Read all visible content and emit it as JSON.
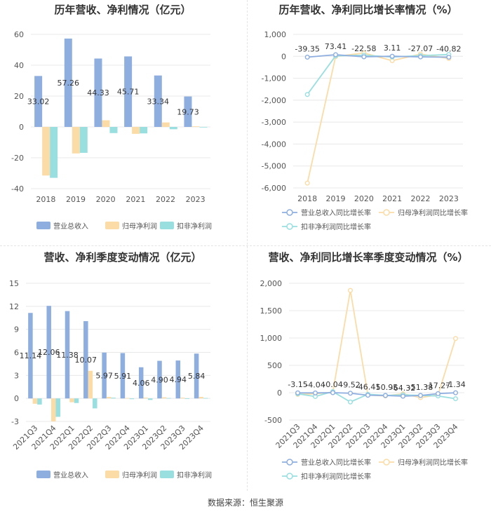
{
  "source": "数据来源：恒生聚源",
  "colors": {
    "revenue": "#8eaee0",
    "net_profit": "#fbdca7",
    "deducted_profit": "#99dfe0",
    "grid": "#e8e8e8",
    "axis_text": "#555555",
    "label_text": "#333333"
  },
  "chart_data": [
    {
      "type": "bar",
      "title": "历年营收、净利情况（亿元）",
      "categories": [
        "2018",
        "2019",
        "2020",
        "2021",
        "2022",
        "2023"
      ],
      "ylim": [
        -40,
        60
      ],
      "yticks": [
        -40,
        -20,
        0,
        20,
        40,
        60
      ],
      "ytick_labels": [
        "-40",
        "-20",
        "0",
        "20",
        "40",
        "60"
      ],
      "series": [
        {
          "name": "营业总收入",
          "values": [
            33.02,
            57.26,
            44.33,
            45.71,
            33.34,
            19.73
          ],
          "labels": [
            "33.02",
            "57.26",
            "44.33",
            "45.71",
            "33.34",
            "19.73"
          ]
        },
        {
          "name": "归母净利润",
          "values": [
            -31.5,
            -17.2,
            4.3,
            -4.5,
            2.9,
            0.4
          ]
        },
        {
          "name": "扣非净利润",
          "values": [
            -33.0,
            -16.8,
            -4.0,
            -4.2,
            -1.5,
            -0.2
          ]
        }
      ]
    },
    {
      "type": "line",
      "title": "历年营收、净利同比增长率情况（%）",
      "categories": [
        "2018",
        "2019",
        "2020",
        "2021",
        "2022",
        "2023"
      ],
      "ylim": [
        -6000,
        1000
      ],
      "yticks": [
        -6000,
        -5000,
        -4000,
        -3000,
        -2000,
        -1000,
        0,
        1000
      ],
      "ytick_labels": [
        "-6,000",
        "-5,000",
        "-4,000",
        "-3,000",
        "-2,000",
        "-1,000",
        "0",
        "1,000"
      ],
      "series": [
        {
          "name": "营业总收入同比增长率",
          "values": [
            -39.35,
            73.41,
            -22.58,
            3.11,
            -27.07,
            -40.82
          ],
          "labels": [
            "-39.35",
            "73.41",
            "-22.58",
            "3.11",
            "-27.07",
            "-40.82"
          ]
        },
        {
          "name": "归母净利润同比增长率",
          "values": [
            -5780,
            -10,
            150,
            -200,
            100,
            -100
          ]
        },
        {
          "name": "扣非净利润同比增长率",
          "values": [
            -1740,
            20,
            50,
            -30,
            30,
            80
          ]
        }
      ]
    },
    {
      "type": "bar",
      "title": "营收、净利季度变动情况（亿元）",
      "categories": [
        "2021Q3",
        "2021Q4",
        "2022Q1",
        "2022Q2",
        "2022Q3",
        "2022Q4",
        "2023Q1",
        "2023Q2",
        "2023Q3",
        "2023Q4"
      ],
      "ylim": [
        -3,
        15
      ],
      "yticks": [
        -3,
        0,
        3,
        6,
        9,
        12,
        15
      ],
      "ytick_labels": [
        "-3",
        "0",
        "3",
        "6",
        "9",
        "12",
        "15"
      ],
      "series": [
        {
          "name": "营业总收入",
          "values": [
            11.14,
            12.06,
            11.38,
            10.07,
            5.97,
            5.91,
            4.06,
            4.9,
            4.94,
            5.84
          ],
          "labels": [
            "11.14",
            "12.06",
            "11.38",
            "10.07",
            "5.97",
            "5.91",
            "4.06",
            "4.90",
            "4.94",
            "5.84"
          ]
        },
        {
          "name": "归母净利润",
          "values": [
            -0.7,
            -3.0,
            -0.5,
            3.6,
            0.2,
            0.05,
            0.1,
            0.15,
            0.1,
            0.2
          ]
        },
        {
          "name": "扣非净利润",
          "values": [
            -0.8,
            -2.4,
            -0.6,
            -1.3,
            0.1,
            -0.1,
            -0.2,
            0.05,
            -0.05,
            0.05
          ]
        }
      ]
    },
    {
      "type": "line",
      "title": "营收、净利同比增长率季度变动情况（%）",
      "categories": [
        "2021Q3",
        "2021Q4",
        "2022Q1",
        "2022Q2",
        "2022Q3",
        "2022Q4",
        "2023Q1",
        "2023Q2",
        "2023Q3",
        "2023Q4"
      ],
      "ylim": [
        -500,
        2000
      ],
      "yticks": [
        -500,
        0,
        500,
        1000,
        1500,
        2000
      ],
      "ytick_labels": [
        "-500",
        "0",
        "500",
        "1,000",
        "1,500",
        "2,000"
      ],
      "series": [
        {
          "name": "营业总收入同比增长率",
          "values": [
            -3.15,
            -4.04,
            -0.04,
            -9.52,
            -46.41,
            -50.95,
            -64.32,
            -51.38,
            -17.27,
            -1.34
          ],
          "labels": [
            "-3.15",
            "-4.04",
            "-0.04",
            "-9.52",
            "-46.41",
            "-50.95",
            "-64.32",
            "-51.38",
            "-17.27",
            "-1.34"
          ]
        },
        {
          "name": "归母净利润同比增长率",
          "values": [
            -30,
            -20,
            10,
            1870,
            -40,
            -60,
            -20,
            -90,
            -40,
            990
          ]
        },
        {
          "name": "扣非净利润同比增长率",
          "values": [
            -20,
            -70,
            20,
            -170,
            -30,
            -50,
            -40,
            -50,
            -60,
            -110
          ]
        }
      ]
    }
  ]
}
